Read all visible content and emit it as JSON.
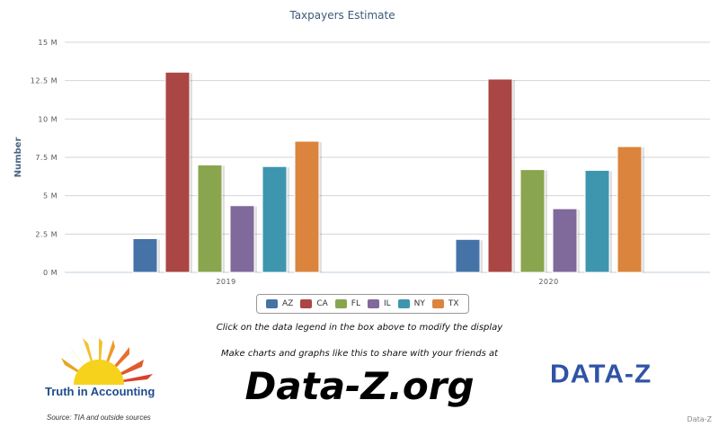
{
  "chart_data": {
    "type": "bar",
    "title": "Taxpayers Estimate",
    "xlabel": "",
    "ylabel": "Number",
    "categories": [
      "2019",
      "2020"
    ],
    "ylim": [
      0,
      15000000
    ],
    "yticks": [
      {
        "value": 0,
        "label": "0 M"
      },
      {
        "value": 2500000,
        "label": "2.5 M"
      },
      {
        "value": 5000000,
        "label": "5 M"
      },
      {
        "value": 7500000,
        "label": "7.5 M"
      },
      {
        "value": 10000000,
        "label": "10 M"
      },
      {
        "value": 12500000,
        "label": "12.5 M"
      },
      {
        "value": 15000000,
        "label": "15 M"
      }
    ],
    "grid": true,
    "legend_position": "bottom-center",
    "series": [
      {
        "name": "AZ",
        "color": "#4572a7",
        "values": [
          2200000,
          2150000
        ]
      },
      {
        "name": "CA",
        "color": "#aa4643",
        "values": [
          13050000,
          12600000
        ]
      },
      {
        "name": "FL",
        "color": "#89a54e",
        "values": [
          7000000,
          6700000
        ]
      },
      {
        "name": "IL",
        "color": "#80699b",
        "values": [
          4350000,
          4150000
        ]
      },
      {
        "name": "NY",
        "color": "#3d96ae",
        "values": [
          6900000,
          6650000
        ]
      },
      {
        "name": "TX",
        "color": "#db843d",
        "values": [
          8550000,
          8200000
        ]
      }
    ]
  },
  "footer": {
    "hint": "Click on the data legend in the box above to modify the display",
    "promo": "Make charts and graphs like this to share with your friends at",
    "site": "Data-Z.org",
    "tia_name": "Truth in Accounting",
    "source": "Source: TIA and outside sources",
    "dz_logo": "DATA-Z",
    "credit": "Data-Z"
  }
}
